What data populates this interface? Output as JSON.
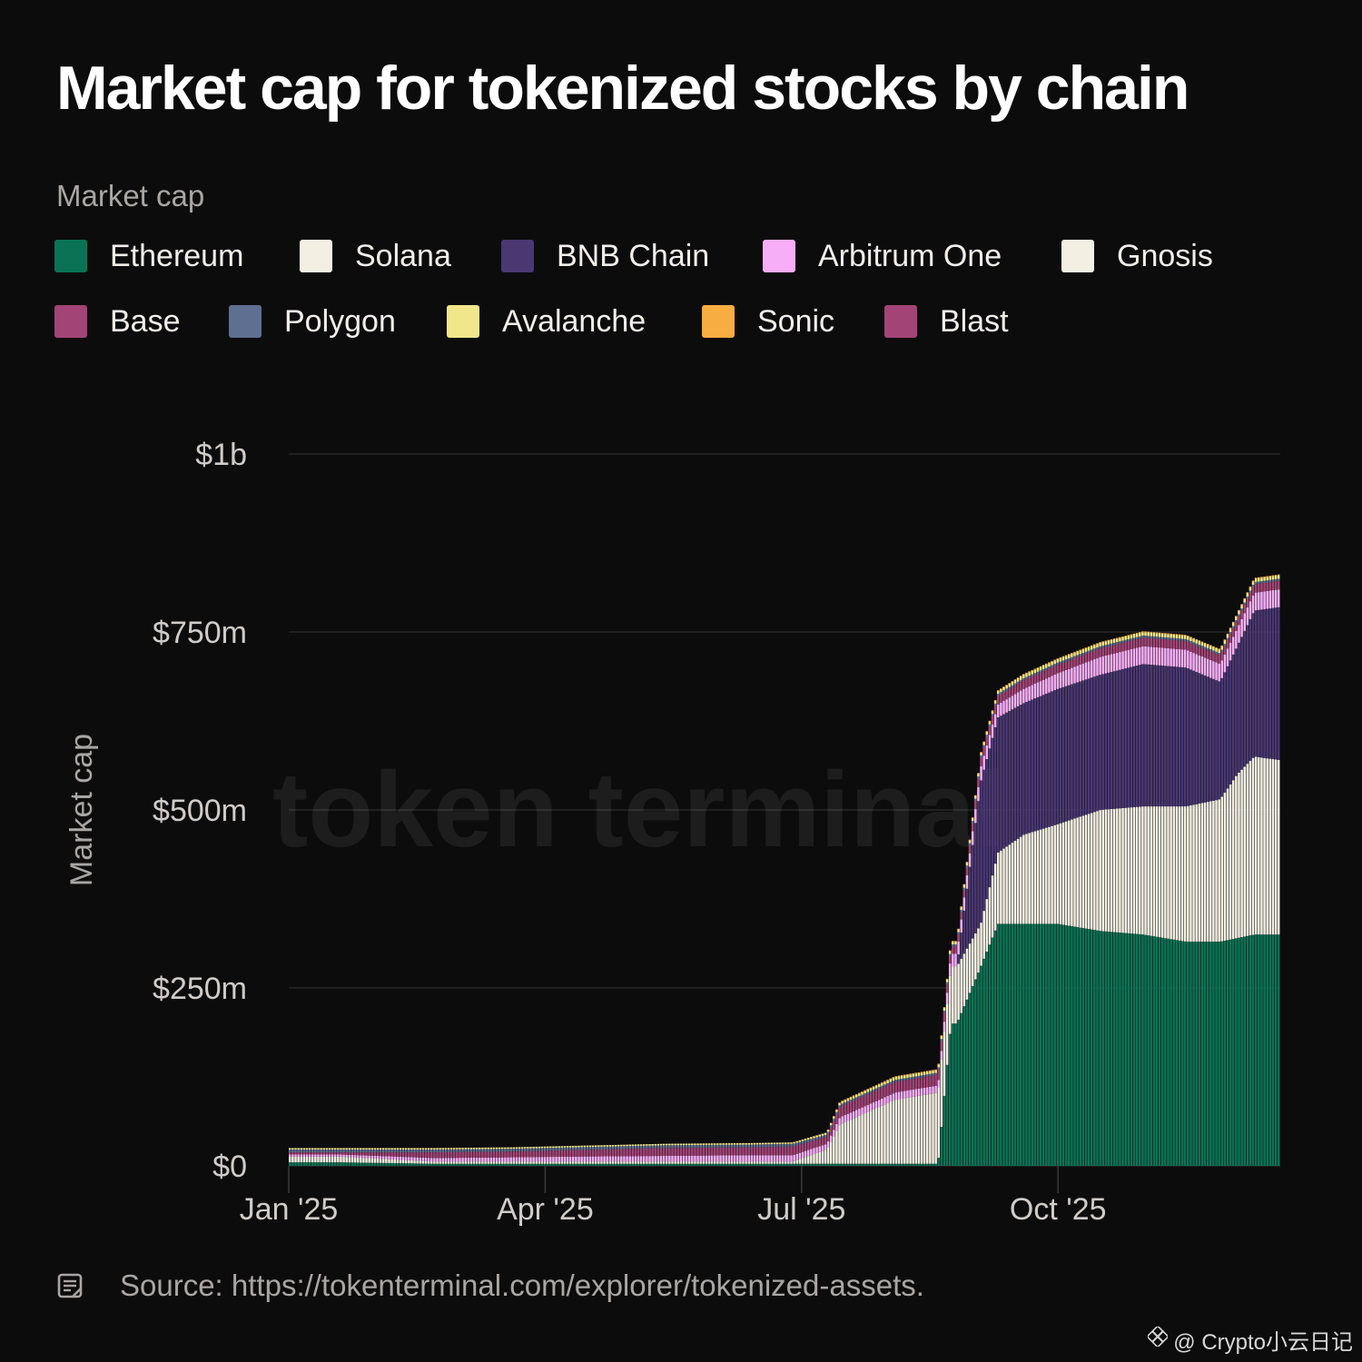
{
  "title": "Market cap for tokenized stocks by chain",
  "legend": {
    "title": "Market cap",
    "items": [
      {
        "name": "Ethereum",
        "color": "#0b7355"
      },
      {
        "name": "Solana",
        "color": "#f3efe2"
      },
      {
        "name": "BNB Chain",
        "color": "#4a3873"
      },
      {
        "name": "Arbitrum One",
        "color": "#f7aef7"
      },
      {
        "name": "Gnosis",
        "color": "#f3efe2"
      },
      {
        "name": "Base",
        "color": "#a24476"
      },
      {
        "name": "Polygon",
        "color": "#5f6f91"
      },
      {
        "name": "Avalanche",
        "color": "#f2e68b"
      },
      {
        "name": "Sonic",
        "color": "#f7ad3f"
      },
      {
        "name": "Blast",
        "color": "#a24476"
      }
    ]
  },
  "watermark": "token terminal",
  "source": "Source: https://tokenterminal.com/explorer/tokenized-assets.",
  "credit": "@ Crypto小云日记",
  "chart_data": {
    "type": "bar",
    "stacked": true,
    "title": "Market cap for tokenized stocks by chain",
    "xlabel": "",
    "ylabel": "Market cap",
    "ylim": [
      0,
      1000
    ],
    "y_unit": "$m",
    "yticks": [
      {
        "value": 0,
        "label": "$0"
      },
      {
        "value": 250,
        "label": "$250m"
      },
      {
        "value": 500,
        "label": "$500m"
      },
      {
        "value": 750,
        "label": "$750m"
      },
      {
        "value": 1000,
        "label": "$1b"
      }
    ],
    "xticks": [
      {
        "value": 0,
        "label": "Jan '25"
      },
      {
        "value": 3,
        "label": "Apr '25"
      },
      {
        "value": 6,
        "label": "Jul '25"
      },
      {
        "value": 9,
        "label": "Oct '25"
      }
    ],
    "x_month_range": [
      0,
      11.6
    ],
    "x_description": "months since 1 Jan 2025",
    "grid": true,
    "series_order": [
      "Ethereum",
      "Solana",
      "BNB Chain",
      "Arbitrum One",
      "Gnosis",
      "Base",
      "Polygon",
      "Avalanche",
      "Sonic",
      "Blast"
    ],
    "keyframes_x": [
      0,
      0.6,
      1.7,
      2.6,
      3.3,
      4.4,
      5.4,
      5.9,
      6.3,
      6.45,
      7.1,
      7.6,
      7.75,
      7.82,
      8.1,
      8.3,
      8.6,
      9.0,
      9.5,
      10.0,
      10.5,
      10.9,
      11.1,
      11.3,
      11.6
    ],
    "series": [
      {
        "name": "Ethereum",
        "values": [
          5,
          5,
          3,
          3,
          3,
          3,
          3,
          3,
          3,
          3,
          3,
          3,
          200,
          200,
          280,
          340,
          340,
          340,
          330,
          325,
          315,
          315,
          320,
          325,
          325
        ]
      },
      {
        "name": "Solana",
        "values": [
          8,
          8,
          3,
          3,
          3,
          3,
          3,
          3,
          20,
          55,
          90,
          100,
          80,
          80,
          60,
          100,
          125,
          140,
          170,
          180,
          190,
          200,
          230,
          250,
          245
        ]
      },
      {
        "name": "BNB Chain",
        "values": [
          0,
          0,
          0,
          0,
          0,
          0,
          0,
          0,
          0,
          0,
          0,
          0,
          0,
          0,
          200,
          190,
          185,
          190,
          190,
          200,
          195,
          165,
          180,
          205,
          215
        ]
      },
      {
        "name": "Arbitrum One",
        "values": [
          3,
          3,
          5,
          6,
          7,
          8,
          9,
          9,
          8,
          10,
          10,
          10,
          18,
          18,
          20,
          18,
          20,
          22,
          25,
          25,
          25,
          25,
          25,
          25,
          25
        ]
      },
      {
        "name": "Gnosis",
        "values": [
          0,
          0,
          0,
          0,
          0,
          0,
          0,
          0,
          0,
          0,
          0,
          0,
          0,
          0,
          0,
          0,
          0,
          0,
          0,
          0,
          0,
          0,
          0,
          0,
          0
        ]
      },
      {
        "name": "Base",
        "values": [
          3,
          3,
          8,
          8,
          9,
          11,
          11,
          12,
          10,
          15,
          15,
          15,
          10,
          10,
          12,
          12,
          12,
          12,
          12,
          12,
          12,
          12,
          12,
          12,
          12
        ]
      },
      {
        "name": "Polygon",
        "values": [
          4,
          4,
          4,
          4,
          4,
          4,
          4,
          4,
          3,
          3,
          3,
          3,
          3,
          3,
          3,
          3,
          3,
          3,
          3,
          3,
          3,
          3,
          3,
          3,
          3
        ]
      },
      {
        "name": "Avalanche",
        "values": [
          2,
          2,
          2,
          2,
          2,
          2,
          2,
          2,
          3,
          3,
          4,
          4,
          4,
          4,
          4,
          4,
          5,
          5,
          5,
          5,
          5,
          5,
          5,
          5,
          5
        ]
      },
      {
        "name": "Sonic",
        "values": [
          0,
          0,
          0,
          0,
          0,
          0,
          0,
          0,
          0,
          1,
          1,
          1,
          1,
          1,
          1,
          1,
          1,
          1,
          1,
          1,
          1,
          1,
          1,
          1,
          1
        ]
      },
      {
        "name": "Blast",
        "values": [
          0,
          0,
          0,
          0,
          0,
          0,
          0,
          0,
          0,
          0,
          0,
          0,
          0,
          0,
          0,
          0,
          0,
          0,
          0,
          0,
          0,
          0,
          0,
          0,
          0
        ]
      }
    ]
  }
}
